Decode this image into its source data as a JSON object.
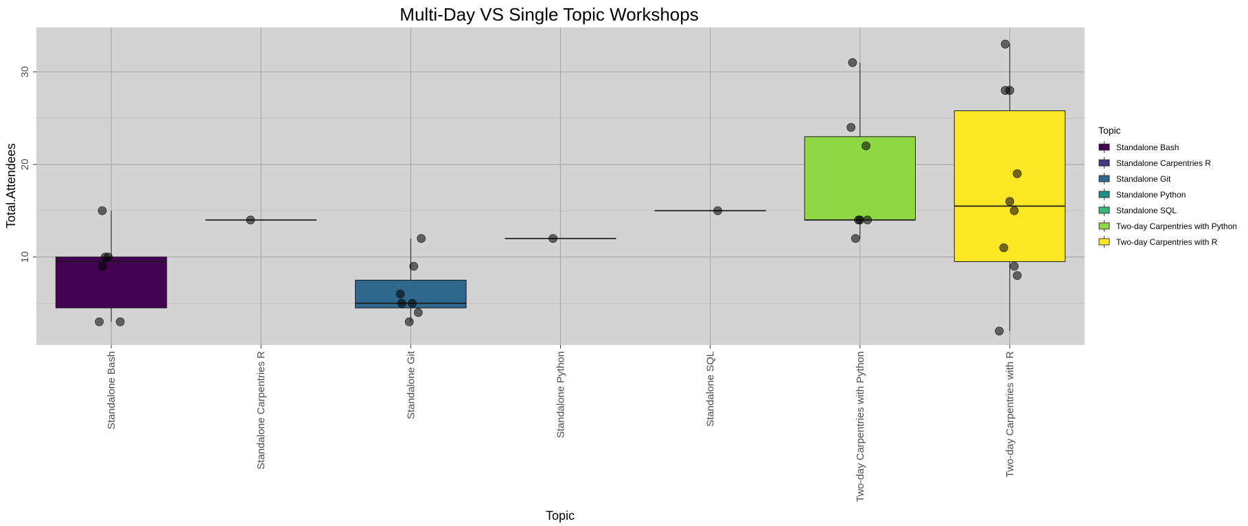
{
  "chart_data": {
    "type": "box",
    "title": "Multi-Day VS Single Topic Workshops",
    "xlabel": "Topic",
    "ylabel": "Total.Attendees",
    "ylim": [
      0.5,
      34.8
    ],
    "yticks": [
      10,
      20,
      30
    ],
    "grid": true,
    "legend": {
      "title": "Topic",
      "position": "right"
    },
    "categories": [
      "Standalone Bash",
      "Standalone Carpentries R",
      "Standalone Git",
      "Standalone Python",
      "Standalone SQL",
      "Two-day Carpentries with Python",
      "Two-day Carpentries with R"
    ],
    "colors": [
      "#440154",
      "#443a83",
      "#31688e",
      "#21908c",
      "#35b779",
      "#8fd744",
      "#fde725"
    ],
    "legend_labels": [
      "Standalone Bash",
      "Standalone Carpentries R",
      "Standalone Git",
      "Standalone Python",
      "Standalone SQL",
      "Two-day Carpentries with Python",
      "Two-day Carpentries with R"
    ],
    "boxes": [
      {
        "q1": 4.5,
        "median": 9.5,
        "q3": 10,
        "whisker_low": 3,
        "whisker_high": 15
      },
      {
        "q1": 14,
        "median": 14,
        "q3": 14,
        "whisker_low": 14,
        "whisker_high": 14
      },
      {
        "q1": 4.5,
        "median": 5,
        "q3": 7.5,
        "whisker_low": 3,
        "whisker_high": 12
      },
      {
        "q1": 12,
        "median": 12,
        "q3": 12,
        "whisker_low": 12,
        "whisker_high": 12
      },
      {
        "q1": 15,
        "median": 15,
        "q3": 15,
        "whisker_low": 15,
        "whisker_high": 15
      },
      {
        "q1": 14,
        "median": 14,
        "q3": 23,
        "whisker_low": 12,
        "whisker_high": 31
      },
      {
        "q1": 9.5,
        "median": 15.5,
        "q3": 25.8,
        "whisker_low": 2,
        "whisker_high": 33
      }
    ],
    "points": [
      [
        {
          "jitter": -0.06,
          "y": 15
        },
        {
          "jitter": -0.04,
          "y": 10
        },
        {
          "jitter": -0.02,
          "y": 10
        },
        {
          "jitter": -0.06,
          "y": 9
        },
        {
          "jitter": -0.08,
          "y": 3
        },
        {
          "jitter": 0.06,
          "y": 3
        }
      ],
      [
        {
          "jitter": -0.07,
          "y": 14
        }
      ],
      [
        {
          "jitter": 0.07,
          "y": 12
        },
        {
          "jitter": 0.02,
          "y": 9
        },
        {
          "jitter": -0.07,
          "y": 6
        },
        {
          "jitter": -0.06,
          "y": 5
        },
        {
          "jitter": 0.01,
          "y": 5
        },
        {
          "jitter": 0.05,
          "y": 4
        },
        {
          "jitter": -0.01,
          "y": 3
        }
      ],
      [
        {
          "jitter": -0.05,
          "y": 12
        }
      ],
      [
        {
          "jitter": 0.05,
          "y": 15
        }
      ],
      [
        {
          "jitter": -0.05,
          "y": 31
        },
        {
          "jitter": -0.06,
          "y": 24
        },
        {
          "jitter": 0.04,
          "y": 22
        },
        {
          "jitter": -0.01,
          "y": 14
        },
        {
          "jitter": 0.0,
          "y": 14
        },
        {
          "jitter": 0.05,
          "y": 14
        },
        {
          "jitter": -0.03,
          "y": 12
        }
      ],
      [
        {
          "jitter": -0.03,
          "y": 33
        },
        {
          "jitter": -0.03,
          "y": 28
        },
        {
          "jitter": 0.0,
          "y": 28
        },
        {
          "jitter": 0.05,
          "y": 19
        },
        {
          "jitter": 0.0,
          "y": 16
        },
        {
          "jitter": 0.03,
          "y": 15
        },
        {
          "jitter": -0.04,
          "y": 11
        },
        {
          "jitter": 0.03,
          "y": 9
        },
        {
          "jitter": 0.05,
          "y": 8
        },
        {
          "jitter": -0.07,
          "y": 2
        }
      ]
    ]
  }
}
